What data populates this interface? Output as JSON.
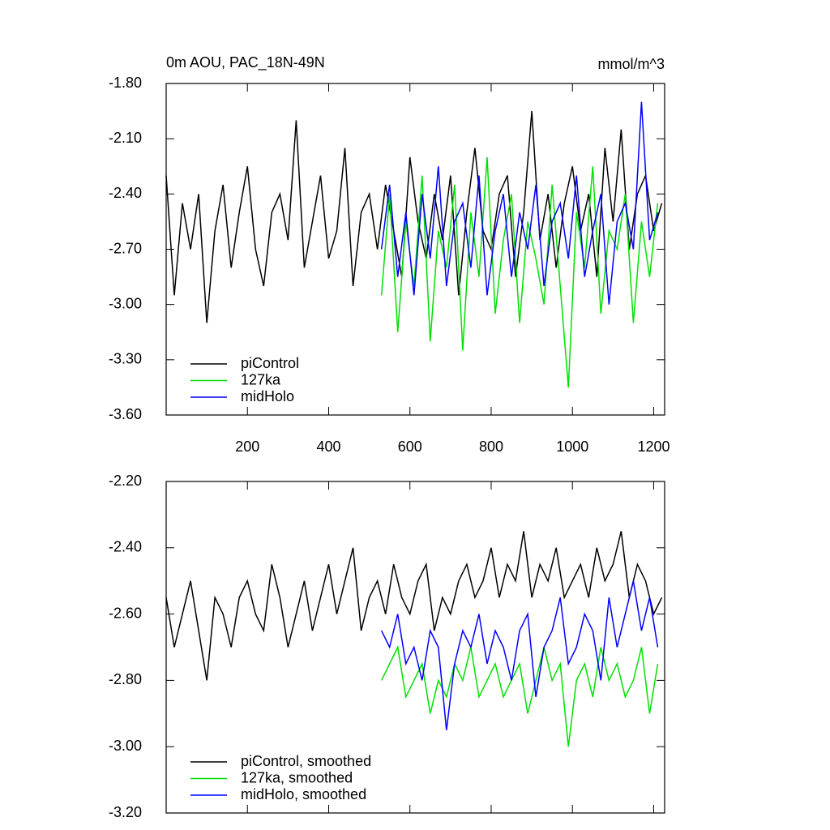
{
  "chart_data": [
    {
      "type": "line",
      "title": "0m AOU, PAC_18N-49N",
      "units": "mmol/m^3",
      "xlim": [
        0,
        1227
      ],
      "xticks": [
        200,
        400,
        600,
        800,
        1000,
        1200
      ],
      "ylim": [
        -3.6,
        -1.8
      ],
      "yticks": [
        {
          "value": -3.6,
          "label": "-3.60"
        },
        {
          "value": -3.3,
          "label": "-3.30"
        },
        {
          "value": -3.0,
          "label": "-3.00"
        },
        {
          "value": -2.7,
          "label": "-2.70"
        },
        {
          "value": -2.4,
          "label": "-2.40"
        },
        {
          "value": -2.1,
          "label": "-2.10"
        },
        {
          "value": -1.8,
          "label": "-1.80"
        }
      ],
      "grid": false,
      "legend": "lower left",
      "series": [
        {
          "name": "piControl",
          "color": "#000000",
          "x": [
            0,
            20,
            40,
            60,
            80,
            100,
            120,
            140,
            160,
            180,
            200,
            220,
            240,
            260,
            280,
            300,
            320,
            340,
            360,
            380,
            400,
            420,
            440,
            460,
            480,
            500,
            520,
            540,
            560,
            580,
            600,
            620,
            640,
            660,
            680,
            700,
            720,
            740,
            760,
            780,
            800,
            820,
            840,
            860,
            880,
            900,
            920,
            940,
            960,
            980,
            1000,
            1020,
            1040,
            1060,
            1080,
            1100,
            1120,
            1140,
            1160,
            1180,
            1200,
            1220
          ],
          "values": [
            -2.3,
            -2.95,
            -2.45,
            -2.7,
            -2.4,
            -3.1,
            -2.6,
            -2.35,
            -2.8,
            -2.5,
            -2.25,
            -2.7,
            -2.9,
            -2.5,
            -2.4,
            -2.65,
            -2.0,
            -2.8,
            -2.55,
            -2.3,
            -2.75,
            -2.6,
            -2.15,
            -2.9,
            -2.5,
            -2.4,
            -2.7,
            -2.35,
            -2.6,
            -2.85,
            -2.2,
            -2.55,
            -2.75,
            -2.4,
            -2.65,
            -2.3,
            -2.95,
            -2.5,
            -2.15,
            -2.6,
            -2.7,
            -2.4,
            -2.3,
            -2.85,
            -2.5,
            -1.95,
            -2.65,
            -2.4,
            -2.8,
            -2.45,
            -2.25,
            -2.6,
            -2.4,
            -2.85,
            -2.15,
            -2.55,
            -2.05,
            -2.7,
            -2.4,
            -2.3,
            -2.6,
            -2.45
          ]
        },
        {
          "name": "127ka",
          "color": "#00e000",
          "x": [
            530,
            550,
            570,
            590,
            610,
            630,
            650,
            670,
            690,
            710,
            730,
            750,
            770,
            790,
            810,
            830,
            850,
            870,
            890,
            910,
            930,
            950,
            970,
            990,
            1010,
            1030,
            1050,
            1070,
            1090,
            1110,
            1130,
            1150,
            1170,
            1190,
            1210
          ],
          "values": [
            -2.95,
            -2.4,
            -3.15,
            -2.55,
            -2.9,
            -2.3,
            -3.2,
            -2.6,
            -2.8,
            -2.35,
            -3.25,
            -2.5,
            -2.85,
            -2.2,
            -3.05,
            -2.65,
            -2.4,
            -3.1,
            -2.55,
            -2.75,
            -3.0,
            -2.35,
            -2.9,
            -3.45,
            -2.5,
            -2.8,
            -2.25,
            -3.05,
            -2.6,
            -2.7,
            -2.4,
            -3.1,
            -2.55,
            -2.85,
            -2.45
          ]
        },
        {
          "name": "midHolo",
          "color": "#0000ff",
          "x": [
            530,
            550,
            570,
            590,
            610,
            630,
            650,
            670,
            690,
            710,
            730,
            750,
            770,
            790,
            810,
            830,
            850,
            870,
            890,
            910,
            930,
            950,
            970,
            990,
            1010,
            1030,
            1050,
            1070,
            1090,
            1110,
            1130,
            1150,
            1170,
            1190,
            1210
          ],
          "values": [
            -2.7,
            -2.35,
            -2.85,
            -2.5,
            -2.95,
            -2.4,
            -2.75,
            -2.25,
            -2.9,
            -2.55,
            -2.45,
            -2.8,
            -2.3,
            -2.95,
            -2.6,
            -2.4,
            -2.85,
            -2.5,
            -2.7,
            -2.35,
            -2.9,
            -2.55,
            -2.45,
            -2.75,
            -2.3,
            -2.85,
            -2.6,
            -2.4,
            -3.0,
            -2.55,
            -2.45,
            -2.7,
            -1.9,
            -2.65,
            -2.5
          ]
        }
      ]
    },
    {
      "type": "line",
      "xlim": [
        0,
        1227
      ],
      "xticks": [
        200,
        400,
        600,
        800,
        1000,
        1200
      ],
      "ylim": [
        -3.2,
        -2.2
      ],
      "yticks": [
        {
          "value": -3.2,
          "label": "-3.20"
        },
        {
          "value": -3.0,
          "label": "-3.00"
        },
        {
          "value": -2.8,
          "label": "-2.80"
        },
        {
          "value": -2.6,
          "label": "-2.60"
        },
        {
          "value": -2.4,
          "label": "-2.40"
        },
        {
          "value": -2.2,
          "label": "-2.20"
        }
      ],
      "grid": false,
      "legend": "lower left",
      "series": [
        {
          "name": "piControl, smoothed",
          "color": "#000000",
          "x": [
            0,
            20,
            40,
            60,
            80,
            100,
            120,
            140,
            160,
            180,
            200,
            220,
            240,
            260,
            280,
            300,
            320,
            340,
            360,
            380,
            400,
            420,
            440,
            460,
            480,
            500,
            520,
            540,
            560,
            580,
            600,
            620,
            640,
            660,
            680,
            700,
            720,
            740,
            760,
            780,
            800,
            820,
            840,
            860,
            880,
            900,
            920,
            940,
            960,
            980,
            1000,
            1020,
            1040,
            1060,
            1080,
            1100,
            1120,
            1140,
            1160,
            1180,
            1200,
            1220
          ],
          "values": [
            -2.55,
            -2.7,
            -2.6,
            -2.5,
            -2.65,
            -2.8,
            -2.55,
            -2.6,
            -2.7,
            -2.55,
            -2.5,
            -2.6,
            -2.65,
            -2.45,
            -2.55,
            -2.7,
            -2.6,
            -2.5,
            -2.65,
            -2.55,
            -2.45,
            -2.6,
            -2.5,
            -2.4,
            -2.65,
            -2.55,
            -2.5,
            -2.6,
            -2.45,
            -2.55,
            -2.6,
            -2.5,
            -2.45,
            -2.65,
            -2.55,
            -2.6,
            -2.5,
            -2.45,
            -2.55,
            -2.5,
            -2.4,
            -2.55,
            -2.45,
            -2.5,
            -2.35,
            -2.55,
            -2.45,
            -2.5,
            -2.4,
            -2.55,
            -2.5,
            -2.45,
            -2.55,
            -2.4,
            -2.5,
            -2.45,
            -2.35,
            -2.55,
            -2.45,
            -2.5,
            -2.6,
            -2.55
          ]
        },
        {
          "name": "127ka, smoothed",
          "color": "#00e000",
          "x": [
            530,
            550,
            570,
            590,
            610,
            630,
            650,
            670,
            690,
            710,
            730,
            750,
            770,
            790,
            810,
            830,
            850,
            870,
            890,
            910,
            930,
            950,
            970,
            990,
            1010,
            1030,
            1050,
            1070,
            1090,
            1110,
            1130,
            1150,
            1170,
            1190,
            1210
          ],
          "values": [
            -2.8,
            -2.75,
            -2.7,
            -2.85,
            -2.8,
            -2.75,
            -2.9,
            -2.8,
            -2.85,
            -2.75,
            -2.8,
            -2.7,
            -2.85,
            -2.8,
            -2.75,
            -2.85,
            -2.8,
            -2.75,
            -2.9,
            -2.8,
            -2.7,
            -2.8,
            -2.75,
            -3.0,
            -2.8,
            -2.75,
            -2.85,
            -2.7,
            -2.8,
            -2.75,
            -2.85,
            -2.8,
            -2.7,
            -2.9,
            -2.75
          ]
        },
        {
          "name": "midHolo, smoothed",
          "color": "#0000ff",
          "x": [
            530,
            550,
            570,
            590,
            610,
            630,
            650,
            670,
            690,
            710,
            730,
            750,
            770,
            790,
            810,
            830,
            850,
            870,
            890,
            910,
            930,
            950,
            970,
            990,
            1010,
            1030,
            1050,
            1070,
            1090,
            1110,
            1130,
            1150,
            1170,
            1190,
            1210
          ],
          "values": [
            -2.65,
            -2.7,
            -2.6,
            -2.75,
            -2.7,
            -2.8,
            -2.65,
            -2.7,
            -2.95,
            -2.75,
            -2.65,
            -2.7,
            -2.6,
            -2.75,
            -2.65,
            -2.7,
            -2.8,
            -2.65,
            -2.6,
            -2.85,
            -2.7,
            -2.65,
            -2.55,
            -2.75,
            -2.7,
            -2.6,
            -2.65,
            -2.8,
            -2.55,
            -2.7,
            -2.6,
            -2.5,
            -2.65,
            -2.55,
            -2.7
          ]
        }
      ]
    }
  ]
}
